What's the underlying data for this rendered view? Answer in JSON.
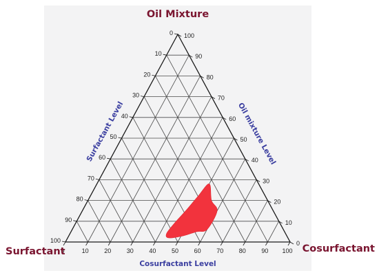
{
  "chart_data": {
    "type": "ternary",
    "corners": {
      "top": "Oil Mixture",
      "left": "Surfactant",
      "right": "Cosurfactant"
    },
    "axes": {
      "bottom": {
        "label": "Cosurfactant Level",
        "ticks": [
          "0",
          "10",
          "20",
          "30",
          "40",
          "50",
          "60",
          "70",
          "80",
          "90",
          "100"
        ]
      },
      "left": {
        "label": "Surfactant Level",
        "ticks": [
          "0",
          "10",
          "20",
          "30",
          "40",
          "50",
          "60",
          "70",
          "80",
          "90",
          "100"
        ]
      },
      "right": {
        "label": "Oil mixture Level",
        "ticks": [
          "100",
          "90",
          "80",
          "70",
          "60",
          "50",
          "40",
          "30",
          "20",
          "10",
          "0"
        ]
      }
    },
    "range": [
      0,
      100
    ],
    "grid": true,
    "grid_step": 10,
    "region": {
      "name": "",
      "color": "#f2333d",
      "points": [
        {
          "cosurfactant": 50,
          "oil": 28
        },
        {
          "cosurfactant": 55,
          "oil": 20
        },
        {
          "cosurfactant": 60,
          "oil": 15
        },
        {
          "cosurfactant": 60,
          "oil": 6
        },
        {
          "cosurfactant": 56,
          "oil": 5
        },
        {
          "cosurfactant": 51,
          "oil": 3
        },
        {
          "cosurfactant": 45,
          "oil": 2
        },
        {
          "cosurfactant": 43,
          "oil": 4
        },
        {
          "cosurfactant": 44,
          "oil": 9
        },
        {
          "cosurfactant": 46,
          "oil": 15
        },
        {
          "cosurfactant": 48,
          "oil": 22
        }
      ]
    },
    "colors": {
      "corner_labels": "#7a1530",
      "axis_titles": "#3b3fa0",
      "grid": "#4a4a4a",
      "plot_background": "#f3f3f4"
    }
  }
}
